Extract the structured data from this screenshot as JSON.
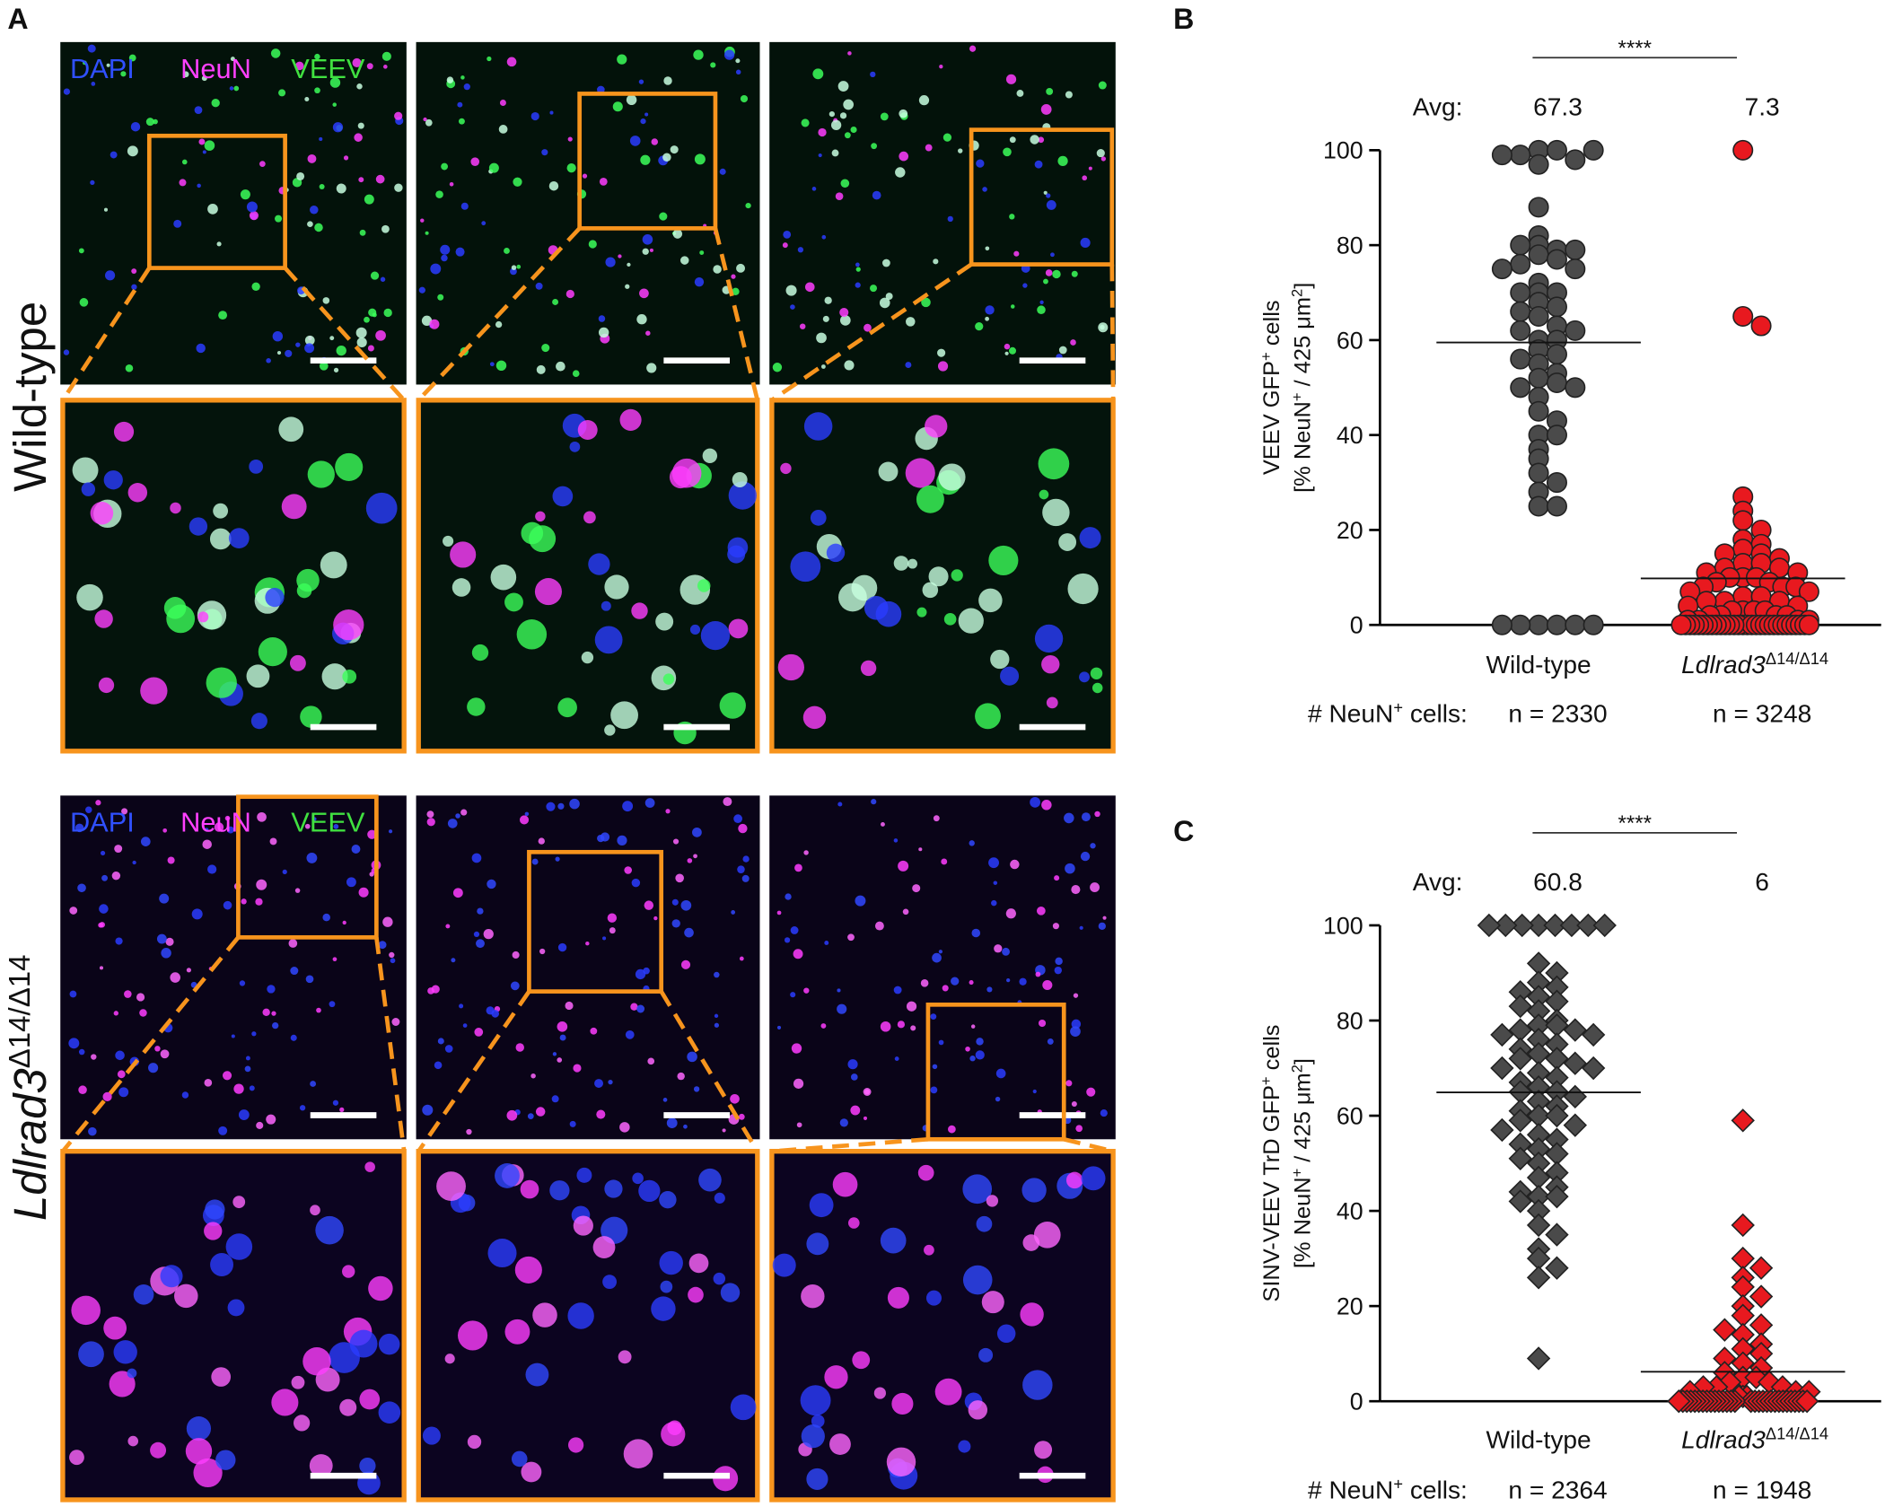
{
  "panel_a": {
    "label": "A",
    "stain_labels": [
      "DAPI",
      "NeuN",
      "VEEV"
    ],
    "rows": [
      {
        "label": "Wild-type"
      },
      {
        "label": "Ldlrad3",
        "label_sup": "Δ14/Δ14"
      }
    ]
  },
  "chart_data": [
    {
      "type": "scatter",
      "panel_label": "B",
      "marker": "circle",
      "ylabel": [
        [
          "VEEV GFP",
          "+",
          " cells"
        ],
        [
          "[% NeuN",
          "+",
          " / 425 μm",
          "2",
          "]"
        ]
      ],
      "ylim": [
        0,
        100
      ],
      "yticks": [
        0,
        20,
        40,
        60,
        80,
        100
      ],
      "avg_label": "Avg:",
      "count_label": [
        "# NeuN",
        "+",
        " cells:"
      ],
      "significance": "****",
      "groups": [
        {
          "name": "Wild-type",
          "color": "#4a4a4a",
          "avg": 67.3,
          "mean": 59.5,
          "n_label": "n = 2330",
          "values": [
            100,
            100,
            99,
            98,
            99,
            100,
            97,
            88,
            82,
            80,
            79,
            80,
            79,
            78,
            77,
            76,
            75,
            75,
            72,
            70,
            70,
            70,
            68,
            67,
            66,
            65,
            63,
            62,
            62,
            60,
            60,
            58,
            57,
            56,
            55,
            53,
            52,
            51,
            50,
            50,
            48,
            45,
            43,
            40,
            40,
            37,
            35,
            32,
            30,
            28,
            25,
            25,
            0,
            0,
            0,
            0,
            0,
            0
          ]
        },
        {
          "name": "Ldlrad3",
          "name_sup": "Δ14/Δ14",
          "color": "#e8191f",
          "avg": 7.3,
          "mean": 9.8,
          "n_label": "n = 3248",
          "values": [
            100,
            65,
            63,
            27,
            24,
            22,
            20,
            18,
            17,
            16,
            15,
            15,
            14,
            13,
            13,
            12,
            12,
            11,
            11,
            10,
            10,
            10,
            9,
            9,
            8,
            8,
            8,
            7,
            7,
            6,
            6,
            5,
            5,
            5,
            4,
            4,
            3,
            3,
            3,
            3,
            2,
            2,
            2,
            2,
            1,
            1,
            1,
            1,
            0,
            0,
            0,
            0,
            0,
            0,
            0,
            0,
            0,
            0,
            0,
            0,
            0,
            0,
            0,
            0,
            0,
            0,
            0,
            0,
            0,
            0,
            0,
            0,
            0,
            0,
            0,
            0,
            0,
            0
          ]
        }
      ]
    },
    {
      "type": "scatter",
      "panel_label": "C",
      "marker": "diamond",
      "ylabel": [
        [
          "SINV-VEEV TrD GFP",
          "+",
          " cells"
        ],
        [
          "[% NeuN",
          "+",
          " / 425 μm",
          "2",
          "]"
        ]
      ],
      "ylim": [
        0,
        100
      ],
      "yticks": [
        0,
        20,
        40,
        60,
        80,
        100
      ],
      "avg_label": "Avg:",
      "count_label": [
        "# NeuN",
        "+",
        " cells:"
      ],
      "significance": "****",
      "groups": [
        {
          "name": "Wild-type",
          "color": "#4a4a4a",
          "avg": 60.8,
          "mean": 64.9,
          "n_label": "n = 2364",
          "values": [
            100,
            100,
            100,
            100,
            100,
            100,
            100,
            100,
            92,
            90,
            88,
            87,
            86,
            85,
            84,
            83,
            82,
            80,
            79,
            79,
            78,
            78,
            77,
            77,
            76,
            75,
            74,
            73,
            72,
            72,
            71,
            70,
            70,
            69,
            68,
            67,
            66,
            65,
            65,
            64,
            63,
            62,
            61,
            60,
            60,
            59,
            58,
            57,
            56,
            55,
            54,
            53,
            52,
            51,
            50,
            48,
            47,
            45,
            44,
            43,
            43,
            42,
            40,
            37,
            35,
            32,
            30,
            28,
            26,
            9
          ]
        },
        {
          "name": "Ldlrad3",
          "name_sup": "Δ14/Δ14",
          "color": "#e8191f",
          "avg": 6,
          "mean": 6.2,
          "n_label": "n = 1948",
          "values": [
            59,
            37,
            30,
            28,
            26,
            24,
            22,
            20,
            18,
            16,
            15,
            14,
            12,
            11,
            10,
            9,
            8,
            7,
            6,
            5,
            5,
            4,
            4,
            3,
            3,
            3,
            2,
            2,
            2,
            1,
            1,
            1,
            0,
            0,
            0,
            0,
            0,
            0,
            0,
            0,
            0,
            0,
            0,
            0,
            0,
            0,
            0,
            0,
            0,
            0,
            0,
            0,
            0,
            0,
            0,
            0,
            0,
            0,
            0,
            0,
            0,
            0
          ]
        }
      ]
    }
  ]
}
